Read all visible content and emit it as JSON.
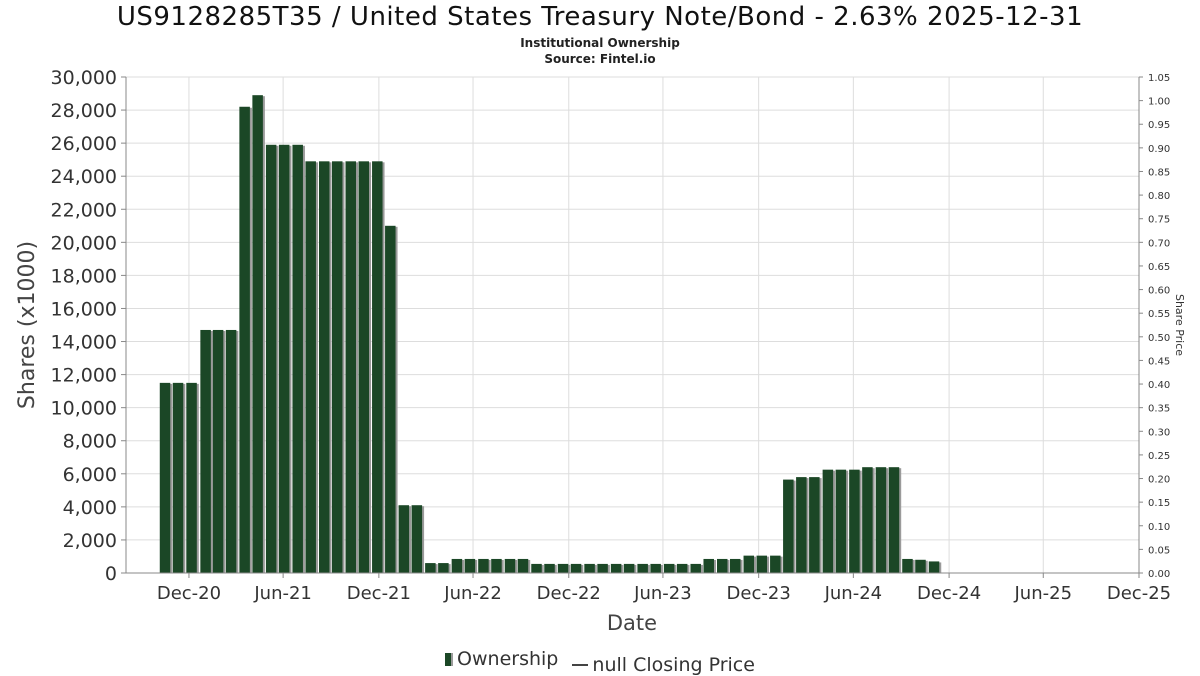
{
  "header": {
    "title": "US9128285T35 / United States Treasury Note/Bond - 2.63% 2025-12-31",
    "subtitle": "Institutional Ownership",
    "source": "Source: Fintel.io"
  },
  "legend": {
    "ownership_label": "Ownership",
    "price_label": "null Closing Price"
  },
  "colors": {
    "bar": "#1b4726",
    "bar_shadow": "#9a9a9a",
    "grid": "#dddddd",
    "axis": "#888888"
  },
  "chart_data": {
    "type": "bar",
    "title": "US9128285T35 / United States Treasury Note/Bond - 2.63% 2025-12-31",
    "xlabel": "Date",
    "ylabel": "Shares (x1000)",
    "y2label": "Share Price",
    "ylim": [
      0,
      30000
    ],
    "y2lim": [
      0,
      1.05
    ],
    "grid": true,
    "legend_position": "bottom",
    "x_range": [
      "2020-09-01",
      "2025-12-31"
    ],
    "x_ticks": [
      {
        "date": "2020-12-31",
        "label": "Dec-20"
      },
      {
        "date": "2021-06-30",
        "label": "Jun-21"
      },
      {
        "date": "2021-12-31",
        "label": "Dec-21"
      },
      {
        "date": "2022-06-30",
        "label": "Jun-22"
      },
      {
        "date": "2022-12-31",
        "label": "Dec-22"
      },
      {
        "date": "2023-06-30",
        "label": "Jun-23"
      },
      {
        "date": "2023-12-31",
        "label": "Dec-23"
      },
      {
        "date": "2024-06-30",
        "label": "Jun-24"
      },
      {
        "date": "2024-12-31",
        "label": "Dec-24"
      },
      {
        "date": "2025-06-30",
        "label": "Jun-25"
      },
      {
        "date": "2025-12-31",
        "label": "Dec-25"
      }
    ],
    "y_ticks": [
      "0",
      "2,000",
      "4,000",
      "6,000",
      "8,000",
      "10,000",
      "12,000",
      "14,000",
      "16,000",
      "18,000",
      "20,000",
      "22,000",
      "24,000",
      "26,000",
      "28,000",
      "30,000"
    ],
    "y2_ticks": [
      "0.00",
      "0.05",
      "0.10",
      "0.15",
      "0.20",
      "0.25",
      "0.30",
      "0.35",
      "0.40",
      "0.45",
      "0.50",
      "0.55",
      "0.60",
      "0.65",
      "0.70",
      "0.75",
      "0.80",
      "0.85",
      "0.90",
      "0.95",
      "1.00",
      "1.05"
    ],
    "series": [
      {
        "name": "Ownership",
        "points": [
          {
            "date": "2020-11-15",
            "value": 11500
          },
          {
            "date": "2020-12-10",
            "value": 11500
          },
          {
            "date": "2021-01-05",
            "value": 11500
          },
          {
            "date": "2021-02-01",
            "value": 14700
          },
          {
            "date": "2021-02-25",
            "value": 14700
          },
          {
            "date": "2021-03-22",
            "value": 14700
          },
          {
            "date": "2021-04-17",
            "value": 28200
          },
          {
            "date": "2021-05-12",
            "value": 28900
          },
          {
            "date": "2021-06-07",
            "value": 25900
          },
          {
            "date": "2021-07-02",
            "value": 25900
          },
          {
            "date": "2021-07-28",
            "value": 25900
          },
          {
            "date": "2021-08-22",
            "value": 24900
          },
          {
            "date": "2021-09-17",
            "value": 24900
          },
          {
            "date": "2021-10-12",
            "value": 24900
          },
          {
            "date": "2021-11-07",
            "value": 24900
          },
          {
            "date": "2021-12-02",
            "value": 24900
          },
          {
            "date": "2021-12-28",
            "value": 24900
          },
          {
            "date": "2022-01-22",
            "value": 21000
          },
          {
            "date": "2022-02-17",
            "value": 4100
          },
          {
            "date": "2022-03-14",
            "value": 4100
          },
          {
            "date": "2022-04-09",
            "value": 600
          },
          {
            "date": "2022-05-04",
            "value": 600
          },
          {
            "date": "2022-05-30",
            "value": 850
          },
          {
            "date": "2022-06-24",
            "value": 850
          },
          {
            "date": "2022-07-20",
            "value": 850
          },
          {
            "date": "2022-08-14",
            "value": 850
          },
          {
            "date": "2022-09-09",
            "value": 850
          },
          {
            "date": "2022-10-04",
            "value": 850
          },
          {
            "date": "2022-10-30",
            "value": 550
          },
          {
            "date": "2022-11-24",
            "value": 550
          },
          {
            "date": "2022-12-20",
            "value": 550
          },
          {
            "date": "2023-01-14",
            "value": 550
          },
          {
            "date": "2023-02-09",
            "value": 550
          },
          {
            "date": "2023-03-06",
            "value": 550
          },
          {
            "date": "2023-04-01",
            "value": 550
          },
          {
            "date": "2023-04-26",
            "value": 550
          },
          {
            "date": "2023-05-22",
            "value": 550
          },
          {
            "date": "2023-06-16",
            "value": 550
          },
          {
            "date": "2023-07-12",
            "value": 550
          },
          {
            "date": "2023-08-06",
            "value": 550
          },
          {
            "date": "2023-09-01",
            "value": 550
          },
          {
            "date": "2023-09-26",
            "value": 850
          },
          {
            "date": "2023-10-22",
            "value": 850
          },
          {
            "date": "2023-11-16",
            "value": 850
          },
          {
            "date": "2023-12-12",
            "value": 1050
          },
          {
            "date": "2024-01-06",
            "value": 1050
          },
          {
            "date": "2024-02-01",
            "value": 1050
          },
          {
            "date": "2024-02-26",
            "value": 5650
          },
          {
            "date": "2024-03-22",
            "value": 5800
          },
          {
            "date": "2024-04-16",
            "value": 5800
          },
          {
            "date": "2024-05-12",
            "value": 6250
          },
          {
            "date": "2024-06-06",
            "value": 6250
          },
          {
            "date": "2024-07-02",
            "value": 6250
          },
          {
            "date": "2024-07-27",
            "value": 6400
          },
          {
            "date": "2024-08-22",
            "value": 6400
          },
          {
            "date": "2024-09-16",
            "value": 6400
          },
          {
            "date": "2024-10-12",
            "value": 850
          },
          {
            "date": "2024-11-06",
            "value": 800
          },
          {
            "date": "2024-12-02",
            "value": 700
          }
        ]
      }
    ]
  }
}
